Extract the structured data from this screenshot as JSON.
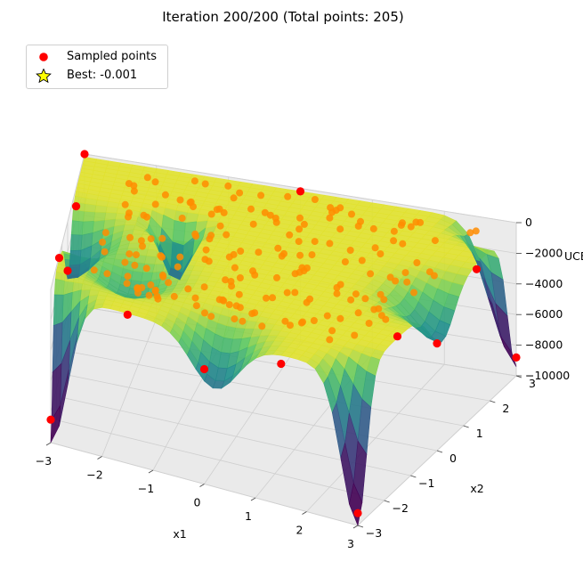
{
  "chart_data": {
    "type": "surface3d",
    "title": "Iteration 200/200  (Total points: 205)",
    "xlabel": "x1",
    "ylabel": "x2",
    "zlabel": "UCB",
    "xlim": [
      -3,
      3
    ],
    "ylim": [
      -3,
      3
    ],
    "zlim": [
      -10000,
      0
    ],
    "xticks": [
      -3,
      -2,
      -1,
      0,
      1,
      2,
      3
    ],
    "xtick_labels": [
      "−3",
      "−2",
      "−1",
      "0",
      "1",
      "2",
      "3"
    ],
    "yticks": [
      -3,
      -2,
      -1,
      0,
      1,
      2,
      3
    ],
    "ytick_labels": [
      "−3",
      "−2",
      "−1",
      "0",
      "1",
      "2",
      "3"
    ],
    "zticks": [
      0,
      -2000,
      -4000,
      -6000,
      -8000,
      -10000
    ],
    "ztick_labels": [
      "0",
      "−2000",
      "−4000",
      "−6000",
      "−8000",
      "−10000"
    ],
    "legend": [
      {
        "label": "Sampled points",
        "marker": "circle",
        "color": "#ff0000"
      },
      {
        "label": "Best: -0.001",
        "marker": "star",
        "color": "#ffff00"
      }
    ],
    "legend_position": "top-left",
    "surface_colormap": "viridis",
    "n_points": 205,
    "best_value": -0.001,
    "edge_points": [
      [
        -3,
        -3,
        -8500
      ],
      [
        3,
        -3,
        -9200
      ],
      [
        3,
        3,
        -8800
      ],
      [
        -3,
        3,
        0
      ],
      [
        -3,
        0,
        -3200
      ],
      [
        0,
        -3,
        -2500
      ],
      [
        0,
        3,
        -200
      ],
      [
        3,
        0,
        -3000
      ],
      [
        -3,
        1.5,
        -1200
      ],
      [
        1.5,
        -3,
        -800
      ],
      [
        3,
        1.5,
        -600
      ],
      [
        -1.5,
        -3,
        -300
      ],
      [
        -3,
        -1.5,
        -150
      ],
      [
        3,
        -1.5,
        -100
      ]
    ],
    "colors": {
      "sampled": "#ff0000",
      "interior": "#ff8c00",
      "best": "#ffff00",
      "pane": "#f2f2f2",
      "grid": "#d0d0d0"
    }
  }
}
